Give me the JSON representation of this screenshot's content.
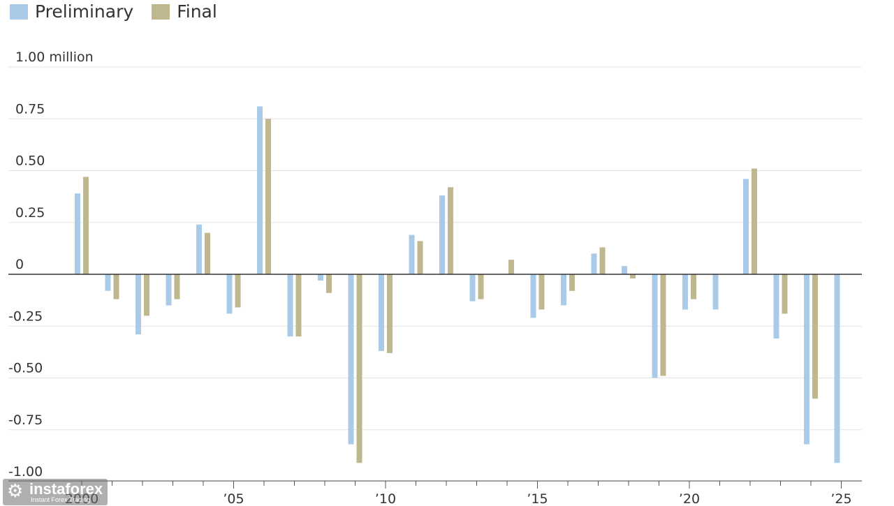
{
  "chart_data": {
    "type": "bar",
    "title": "",
    "xlabel": "",
    "ylabel": "",
    "legend_position": "top-left",
    "grid": true,
    "ylim": [
      -1.0,
      1.0
    ],
    "y_ticks": [
      {
        "value": 1.0,
        "label": "1.00 million"
      },
      {
        "value": 0.75,
        "label": "0.75"
      },
      {
        "value": 0.5,
        "label": "0.50"
      },
      {
        "value": 0.25,
        "label": "0.25"
      },
      {
        "value": 0,
        "label": "0"
      },
      {
        "value": -0.25,
        "label": "-0.25"
      },
      {
        "value": -0.5,
        "label": "-0.50"
      },
      {
        "value": -0.75,
        "label": "-0.75"
      },
      {
        "value": -1.0,
        "label": "-1.00"
      }
    ],
    "x_tick_labels": [
      {
        "year": 2000,
        "label": "2000"
      },
      {
        "year": 2005,
        "label": "’05"
      },
      {
        "year": 2010,
        "label": "’10"
      },
      {
        "year": 2015,
        "label": "’15"
      },
      {
        "year": 2020,
        "label": "’20"
      },
      {
        "year": 2025,
        "label": "’25"
      }
    ],
    "categories": [
      2000,
      2001,
      2002,
      2003,
      2004,
      2005,
      2006,
      2007,
      2008,
      2009,
      2010,
      2011,
      2012,
      2013,
      2014,
      2015,
      2016,
      2017,
      2018,
      2019,
      2020,
      2021,
      2022,
      2023,
      2024,
      2025
    ],
    "series": [
      {
        "name": "Preliminary",
        "color": "#a9cbe8",
        "values": [
          0.39,
          -0.08,
          -0.29,
          -0.15,
          0.24,
          -0.19,
          0.81,
          -0.3,
          -0.03,
          -0.82,
          -0.37,
          0.19,
          0.38,
          -0.13,
          0.0,
          -0.21,
          -0.15,
          0.1,
          0.04,
          -0.5,
          -0.17,
          -0.17,
          0.46,
          -0.31,
          -0.82,
          -0.91
        ]
      },
      {
        "name": "Final",
        "color": "#bfb88e",
        "values": [
          0.47,
          -0.12,
          -0.2,
          -0.12,
          0.2,
          -0.16,
          0.75,
          -0.3,
          -0.09,
          -0.91,
          -0.38,
          0.16,
          0.42,
          -0.12,
          0.07,
          -0.17,
          -0.08,
          0.13,
          -0.02,
          -0.49,
          -0.12,
          0.0,
          0.51,
          -0.19,
          -0.6,
          null
        ]
      }
    ]
  },
  "watermark": {
    "brand": "instaforex",
    "tagline": "Instant Forex Trading",
    "logo_icon": "gear-icon"
  }
}
